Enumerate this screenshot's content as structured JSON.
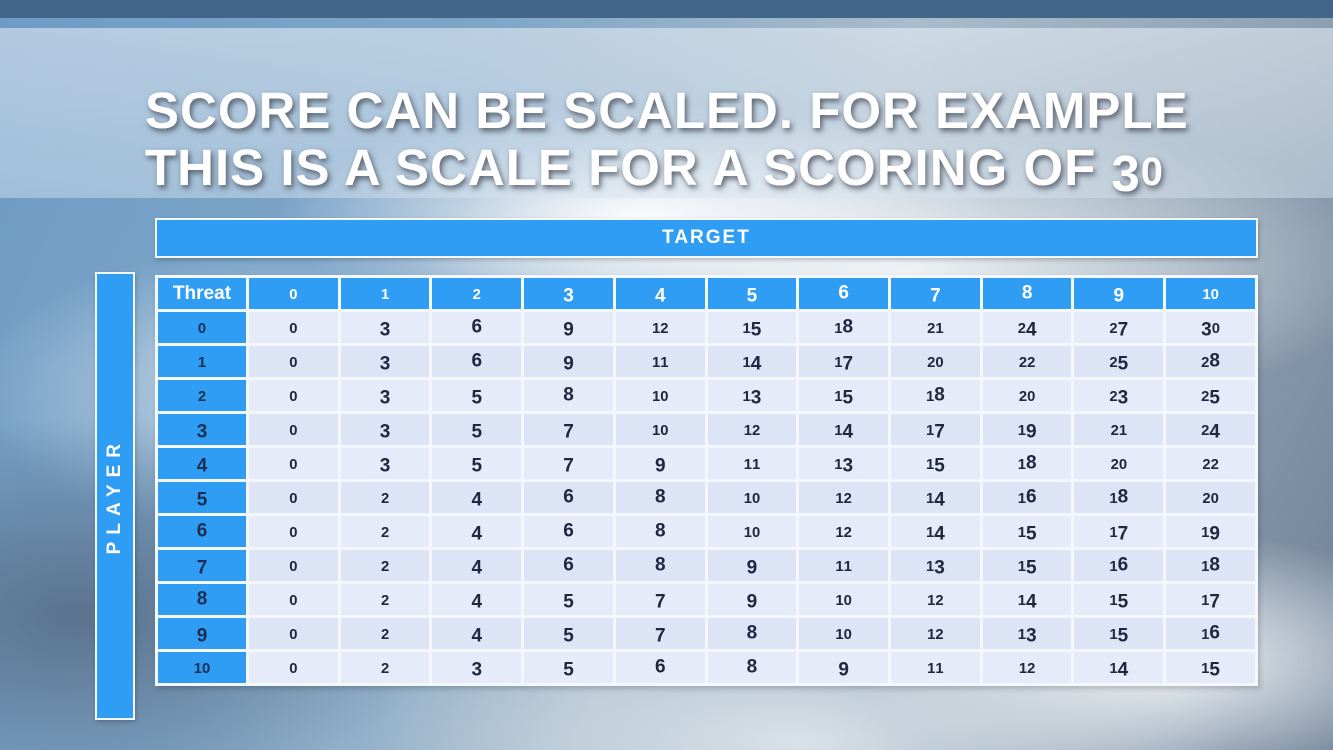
{
  "slide": {
    "title_line1": "SCORE CAN BE SCALED. FOR EXAMPLE",
    "title_line2": "THIS IS A SCALE FOR A SCORING OF 30"
  },
  "chart_data": {
    "type": "table",
    "column_axis_label": "TARGET",
    "row_axis_label": "PLAYER",
    "corner_label": "Threat",
    "columns": [
      "0",
      "1",
      "2",
      "3",
      "4",
      "5",
      "6",
      "7",
      "8",
      "9",
      "10"
    ],
    "row_labels": [
      "0",
      "1",
      "2",
      "3",
      "4",
      "5",
      "6",
      "7",
      "8",
      "9",
      "10"
    ],
    "values": [
      [
        0,
        3,
        6,
        9,
        12,
        15,
        18,
        21,
        24,
        27,
        30
      ],
      [
        0,
        3,
        6,
        9,
        11,
        14,
        17,
        20,
        22,
        25,
        28
      ],
      [
        0,
        3,
        5,
        8,
        10,
        13,
        15,
        18,
        20,
        23,
        25
      ],
      [
        0,
        3,
        5,
        7,
        10,
        12,
        14,
        17,
        19,
        21,
        24
      ],
      [
        0,
        3,
        5,
        7,
        9,
        11,
        13,
        15,
        18,
        20,
        22
      ],
      [
        0,
        2,
        4,
        6,
        8,
        10,
        12,
        14,
        16,
        18,
        20
      ],
      [
        0,
        2,
        4,
        6,
        8,
        10,
        12,
        14,
        15,
        17,
        19
      ],
      [
        0,
        2,
        4,
        6,
        8,
        9,
        11,
        13,
        15,
        16,
        18
      ],
      [
        0,
        2,
        4,
        5,
        7,
        9,
        10,
        12,
        14,
        15,
        17
      ],
      [
        0,
        2,
        4,
        5,
        7,
        8,
        10,
        12,
        13,
        15,
        16
      ],
      [
        0,
        2,
        3,
        5,
        6,
        8,
        9,
        11,
        12,
        14,
        15
      ]
    ]
  },
  "colors": {
    "header_blue": "#2f9df3",
    "top_strip_blue": "#44658a",
    "cell_background": "#e6ebfa",
    "cell_alt_background": "#dde4f6",
    "cell_text": "#202840",
    "row_header_text": "#1c2e52",
    "title_text": "#ffffff"
  }
}
